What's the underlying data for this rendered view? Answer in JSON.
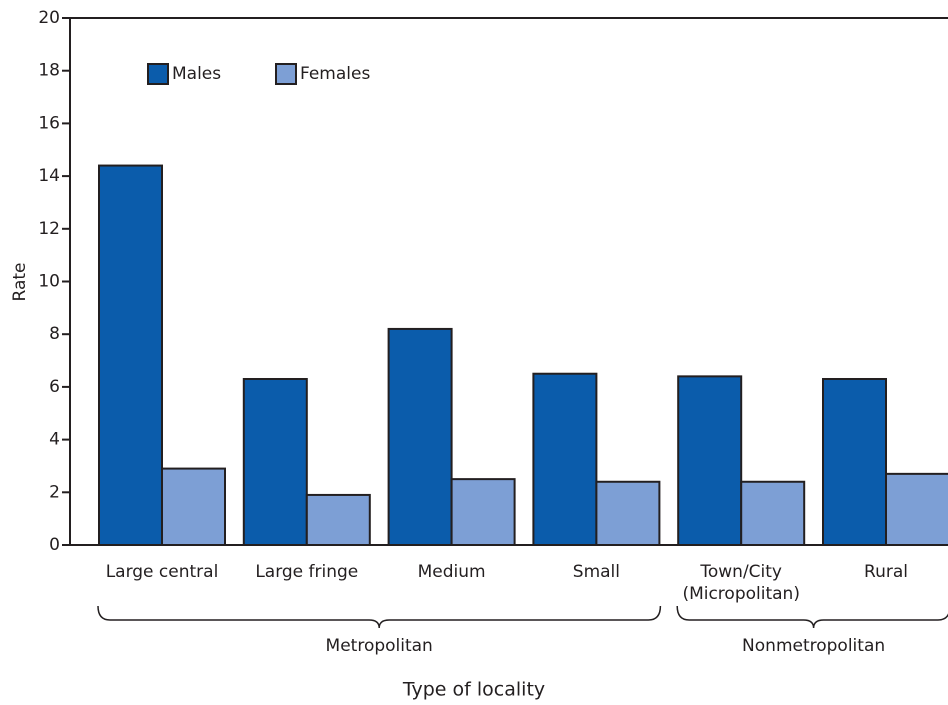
{
  "chart_data": {
    "type": "bar",
    "y_label": "Rate",
    "x_label": "Type of locality",
    "categories": [
      "Large central",
      "Large fringe",
      "Medium",
      "Small",
      "Town/City\n(Micropolitan)",
      "Rural"
    ],
    "groups": [
      {
        "name": "Metropolitan",
        "categories": [
          "Large central",
          "Large fringe",
          "Medium",
          "Small"
        ]
      },
      {
        "name": "Nonmetropolitan",
        "categories": [
          "Town/City\n(Micropolitan)",
          "Rural"
        ]
      }
    ],
    "series": [
      {
        "name": "Males",
        "color": "#0b5cab",
        "values": [
          14.4,
          6.3,
          8.2,
          6.5,
          6.4,
          6.3
        ]
      },
      {
        "name": "Females",
        "color": "#7d9fd5",
        "values": [
          2.9,
          1.9,
          2.5,
          2.4,
          2.4,
          2.7
        ]
      }
    ],
    "ylim": [
      0,
      20
    ],
    "yticks": [
      0,
      2,
      4,
      6,
      8,
      10,
      12,
      14,
      16,
      18,
      20
    ],
    "grid": false,
    "legend": "upper left"
  }
}
